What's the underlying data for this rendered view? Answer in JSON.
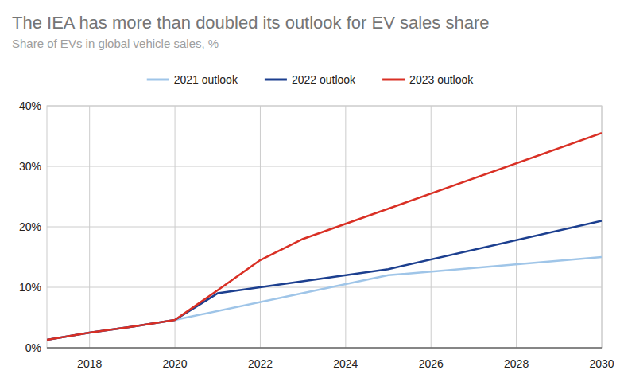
{
  "chart_data": {
    "type": "line",
    "title": "The IEA has more than doubled its outlook for EV sales share",
    "subtitle": "Share of EVs in global vehicle sales, %",
    "series": [
      {
        "name": "2021 outlook",
        "color": "#9fc5e8",
        "x": [
          2017,
          2018,
          2019,
          2020,
          2025,
          2030
        ],
        "values": [
          1.3,
          2.5,
          3.5,
          4.6,
          12,
          15
        ]
      },
      {
        "name": "2022 outlook",
        "color": "#1c3f8f",
        "x": [
          2017,
          2018,
          2019,
          2020,
          2021,
          2025,
          2030
        ],
        "values": [
          1.3,
          2.5,
          3.5,
          4.6,
          9,
          13,
          21
        ]
      },
      {
        "name": "2023 outlook",
        "color": "#d93025",
        "x": [
          2017,
          2018,
          2019,
          2020,
          2021,
          2022,
          2023,
          2030
        ],
        "values": [
          1.3,
          2.5,
          3.5,
          4.6,
          9.5,
          14.5,
          18,
          35.5
        ]
      }
    ],
    "xlim": [
      2017,
      2030
    ],
    "xticks": [
      2018,
      2020,
      2022,
      2024,
      2026,
      2028,
      2030
    ],
    "ylim": [
      0,
      40
    ],
    "yticks": [
      {
        "value": 0,
        "label": "0%"
      },
      {
        "value": 10,
        "label": "10%"
      },
      {
        "value": 20,
        "label": "20%"
      },
      {
        "value": 30,
        "label": "30%"
      },
      {
        "value": 40,
        "label": "40%"
      }
    ],
    "grid": true,
    "legend": "top"
  }
}
